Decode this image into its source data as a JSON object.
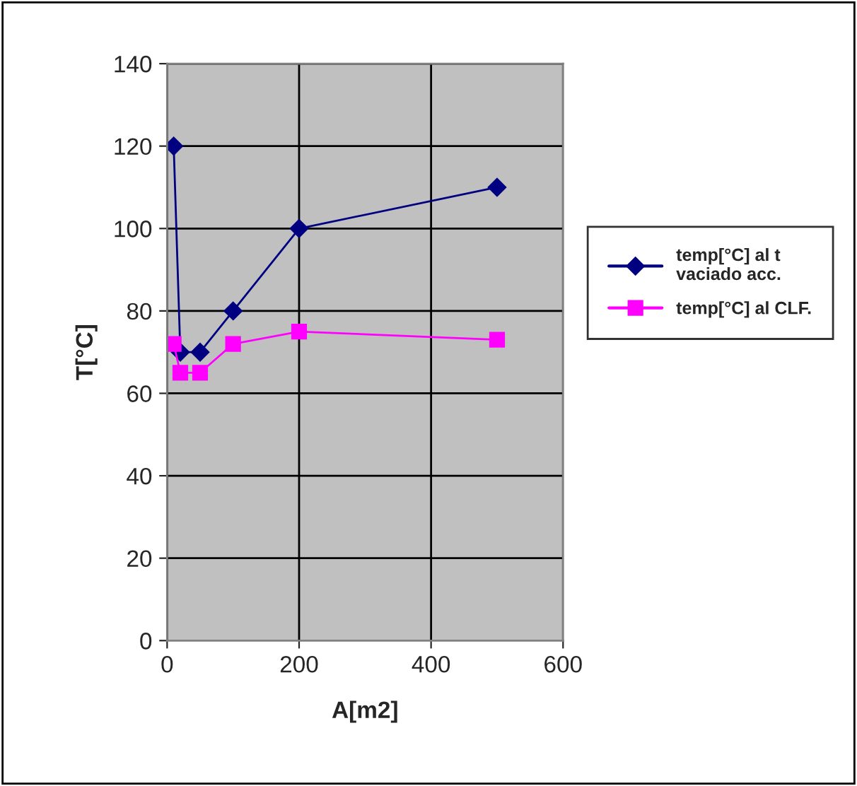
{
  "chart_data": {
    "type": "line",
    "xlabel": "A[m2]",
    "ylabel": "T[°C]",
    "series": [
      {
        "name": "temp[°C] al t\nvaciado acc.",
        "color": "#000080",
        "marker": "diamond",
        "x": [
          10,
          20,
          50,
          100,
          200,
          500
        ],
        "values": [
          120,
          70,
          70,
          80,
          100,
          110
        ]
      },
      {
        "name": "temp[°C] al CLF.",
        "color": "#ff00ff",
        "marker": "square",
        "x": [
          10,
          20,
          50,
          100,
          200,
          500
        ],
        "values": [
          72,
          65,
          65,
          72,
          75,
          73
        ]
      }
    ],
    "xlim": [
      0,
      600
    ],
    "xticks": [
      0,
      200,
      400,
      600
    ],
    "ylim": [
      0,
      140
    ],
    "yticks": [
      0,
      20,
      40,
      60,
      80,
      100,
      120,
      140
    ],
    "grid": true,
    "legend": "right",
    "line_style": "solid"
  }
}
